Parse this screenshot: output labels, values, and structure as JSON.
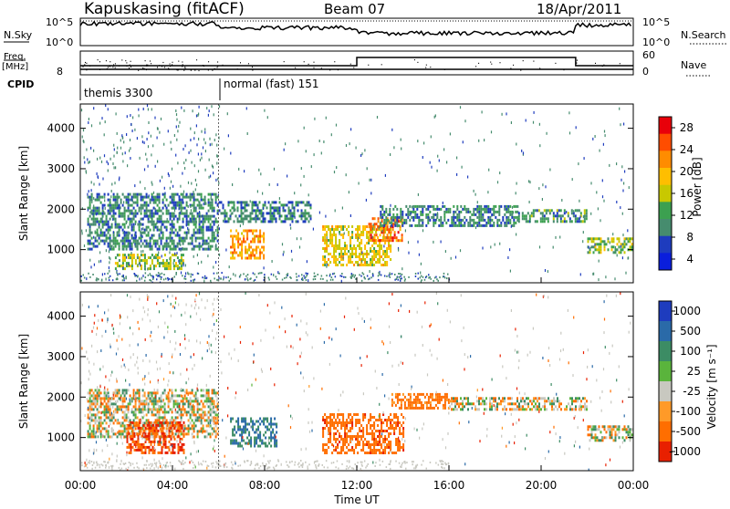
{
  "header": {
    "station": "Kapuskasing (fitACF)",
    "beam": "Beam 07",
    "date": "18/Apr/2011"
  },
  "panels": {
    "nsky_label": "N.Sky",
    "nsearch_label": "N.Search",
    "nsky_ticks": [
      "10^5",
      "10^0"
    ],
    "freq_label_1": "Freq.",
    "freq_label_2": "[MHz]",
    "nave_label": "Nave",
    "freq_ticks": [
      "8"
    ],
    "nave_ticks": [
      "60",
      "0"
    ],
    "cpid_label": "CPID",
    "cpid_1": "themis 3300",
    "cpid_2": "normal (fast) 151"
  },
  "power_colorbar": {
    "label": "Power [dB]",
    "ticks": [
      "28",
      "24",
      "20",
      "16",
      "12",
      "8",
      "4"
    ],
    "colors": [
      "#e8000a",
      "#ff4d00",
      "#ff8c00",
      "#ffbe00",
      "#c8c800",
      "#3ca050",
      "#468c6e",
      "#1e3cbe",
      "#0a1edc"
    ]
  },
  "velocity_colorbar": {
    "label": "Velocity [m s⁻¹]",
    "ticks": [
      "1000",
      "500",
      "100",
      "25",
      "-25",
      "-100",
      "-500",
      "-1000"
    ],
    "colors": [
      "#1e3cbe",
      "#2a6aa8",
      "#3c8c64",
      "#5ab43c",
      "#c8c8c0",
      "#ff9a28",
      "#ff6e00",
      "#e82000"
    ]
  },
  "axes": {
    "xlabel": "Time UT",
    "ylabel": "Slant Range [km]",
    "x_ticks": [
      "00:00",
      "04:00",
      "08:00",
      "12:00",
      "16:00",
      "20:00",
      "00:00"
    ],
    "y_ticks": [
      "1000",
      "2000",
      "3000",
      "4000"
    ]
  },
  "chart_data": [
    {
      "type": "heatmap",
      "title": "Power [dB]",
      "xlabel": "",
      "ylabel": "Slant Range [km]",
      "xlim": [
        0,
        24
      ],
      "ylim": [
        180,
        4600
      ],
      "y_ticks": [
        1000,
        2000,
        3000,
        4000
      ],
      "colorbar_ticks": [
        28,
        24,
        20,
        16,
        12,
        8,
        4
      ],
      "regions": [
        {
          "t": [
            0.3,
            6.0
          ],
          "r": [
            1000,
            2400
          ],
          "db": 8
        },
        {
          "t": [
            1.5,
            4.5
          ],
          "r": [
            500,
            900
          ],
          "db": 14
        },
        {
          "t": [
            6.0,
            10.0
          ],
          "r": [
            1700,
            2200
          ],
          "db": 8
        },
        {
          "t": [
            6.5,
            8.0
          ],
          "r": [
            800,
            1500
          ],
          "db": 22
        },
        {
          "t": [
            10.5,
            13.5
          ],
          "r": [
            600,
            1600
          ],
          "db": 18
        },
        {
          "t": [
            12.5,
            14.0
          ],
          "r": [
            1200,
            1800
          ],
          "db": 26
        },
        {
          "t": [
            13.0,
            19.0
          ],
          "r": [
            1600,
            2100
          ],
          "db": 8
        },
        {
          "t": [
            19.0,
            22.0
          ],
          "r": [
            1700,
            2000
          ],
          "db": 10
        },
        {
          "t": [
            22.0,
            24.0
          ],
          "r": [
            900,
            1300
          ],
          "db": 14
        }
      ]
    },
    {
      "type": "heatmap",
      "title": "Velocity [m s⁻¹]",
      "xlabel": "Time UT",
      "ylabel": "Slant Range [km]",
      "xlim": [
        0,
        24
      ],
      "ylim": [
        180,
        4600
      ],
      "y_ticks": [
        1000,
        2000,
        3000,
        4000
      ],
      "x_ticks": [
        "00:00",
        "04:00",
        "08:00",
        "12:00",
        "16:00",
        "20:00",
        "00:00"
      ],
      "colorbar_ticks": [
        1000,
        500,
        100,
        25,
        -25,
        -100,
        -500,
        -1000
      ],
      "regions": [
        {
          "t": [
            0.3,
            6.0
          ],
          "r": [
            1000,
            2200
          ],
          "v": 0
        },
        {
          "t": [
            2.0,
            4.5
          ],
          "r": [
            600,
            1400
          ],
          "v": -300
        },
        {
          "t": [
            6.5,
            8.5
          ],
          "r": [
            800,
            1500
          ],
          "v": 300
        },
        {
          "t": [
            10.5,
            14.0
          ],
          "r": [
            600,
            1600
          ],
          "v": -200
        },
        {
          "t": [
            13.5,
            16.0
          ],
          "r": [
            1700,
            2100
          ],
          "v": -150
        },
        {
          "t": [
            16.0,
            22.0
          ],
          "r": [
            1700,
            2000
          ],
          "v": 0
        },
        {
          "t": [
            22.0,
            24.0
          ],
          "r": [
            900,
            1300
          ],
          "v": 0
        }
      ]
    }
  ]
}
